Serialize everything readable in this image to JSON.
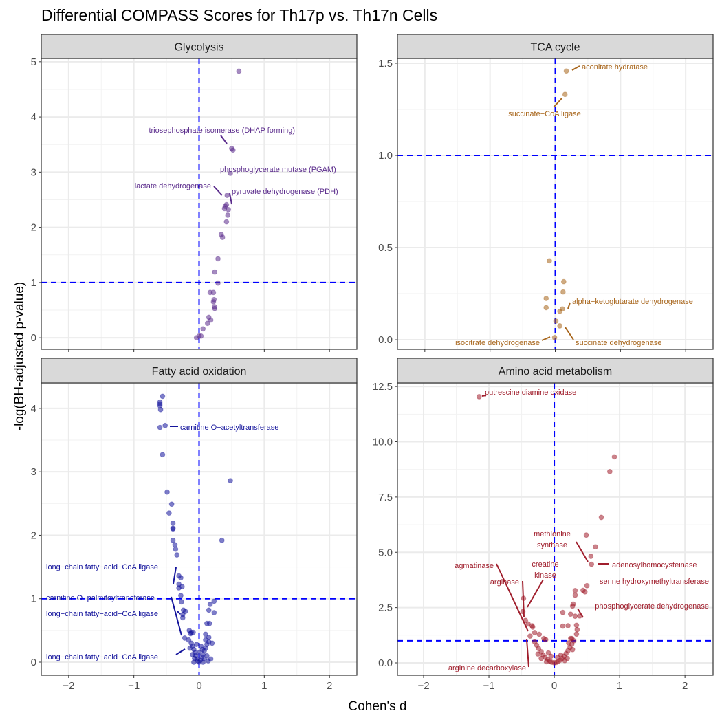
{
  "chart_data": {
    "type": "scatter",
    "title": "Differential COMPASS Scores for Th17p vs. Th17n Cells",
    "xlabel": "Cohen's d",
    "ylabel": "-log(BH-adjusted p-value)",
    "grid": true,
    "threshold_lines": {
      "x": 0,
      "y": 1,
      "color": "#0000ff",
      "style": "dashed"
    },
    "panels": [
      {
        "name": "Glycolysis",
        "color": "#5b2c8c",
        "xlim": [
          -2.42,
          2.42
        ],
        "ylim": [
          -0.21,
          5.06
        ],
        "xticks": [
          -2,
          -1,
          0,
          1,
          2
        ],
        "yticks": [
          0,
          1,
          2,
          3,
          4,
          5
        ],
        "ytick_labels": [
          "0",
          "1",
          "2",
          "3",
          "4",
          "5"
        ],
        "points": [
          [
            0.61,
            4.83
          ],
          [
            0.5,
            3.43
          ],
          [
            0.52,
            3.4
          ],
          [
            0.48,
            2.98
          ],
          [
            0.43,
            2.58
          ],
          [
            0.42,
            2.41
          ],
          [
            0.4,
            2.38
          ],
          [
            0.39,
            2.34
          ],
          [
            0.45,
            2.32
          ],
          [
            0.44,
            2.22
          ],
          [
            0.42,
            2.1
          ],
          [
            0.34,
            1.87
          ],
          [
            0.36,
            1.82
          ],
          [
            0.29,
            1.43
          ],
          [
            0.24,
            1.19
          ],
          [
            0.29,
            0.99
          ],
          [
            0.17,
            0.82
          ],
          [
            0.22,
            0.82
          ],
          [
            0.23,
            0.69
          ],
          [
            0.22,
            0.65
          ],
          [
            0.24,
            0.56
          ],
          [
            0.24,
            0.53
          ],
          [
            0.15,
            0.37
          ],
          [
            0.18,
            0.32
          ],
          [
            0.13,
            0.26
          ],
          [
            0.06,
            0.16
          ],
          [
            0.03,
            0.03
          ],
          [
            -0.04,
            0.0
          ],
          [
            0.0,
            0.03
          ]
        ],
        "labels": [
          {
            "text": "triosephosphate isomerase (DHAP forming)",
            "x": 0.5,
            "y": 3.43
          },
          {
            "text": "phosphoglycerate mutase (PGAM)",
            "x": 0.48,
            "y": 2.98
          },
          {
            "text": "lactate dehydrogenase",
            "x": 0.43,
            "y": 2.58
          },
          {
            "text": "pyruvate dehydrogenase (PDH)",
            "x": 0.42,
            "y": 2.41
          }
        ]
      },
      {
        "name": "TCA cycle",
        "color": "#a8661c",
        "xlim": [
          -2.42,
          2.42
        ],
        "ylim": [
          -0.052,
          1.526
        ],
        "xticks": [
          -2,
          -1,
          0,
          1,
          2
        ],
        "yticks": [
          0,
          0.5,
          1.0,
          1.5
        ],
        "ytick_labels": [
          "0.0",
          "0.5",
          "1.0",
          "1.5"
        ],
        "points": [
          [
            0.17,
            1.458
          ],
          [
            0.15,
            1.331
          ],
          [
            -0.09,
            0.428
          ],
          [
            0.13,
            0.315
          ],
          [
            0.12,
            0.259
          ],
          [
            -0.14,
            0.224
          ],
          [
            -0.14,
            0.174
          ],
          [
            0.11,
            0.167
          ],
          [
            0.07,
            0.154
          ],
          [
            0.01,
            0.101
          ],
          [
            0.07,
            0.075
          ],
          [
            -0.01,
            0.012
          ]
        ],
        "labels": [
          {
            "text": "aconitate hydratase",
            "x": 0.17,
            "y": 1.458
          },
          {
            "text": "succinate−CoA ligase",
            "x": 0.15,
            "y": 1.331
          },
          {
            "text": "alpha−ketoglutarate dehydrogenase",
            "x": 0.11,
            "y": 0.167
          },
          {
            "text": "isocitrate dehydrogenase",
            "x": -0.01,
            "y": 0.012
          },
          {
            "text": "succinate dehydrogenase",
            "x": 0.07,
            "y": 0.075
          }
        ]
      },
      {
        "name": "Fatty acid oxidation",
        "color": "#14149c",
        "xlim": [
          -2.42,
          2.42
        ],
        "ylim": [
          -0.206,
          4.4
        ],
        "xticks": [
          -2,
          -1,
          0,
          1,
          2
        ],
        "yticks": [
          0,
          1,
          2,
          3,
          4
        ],
        "ytick_labels": [
          "0",
          "1",
          "2",
          "3",
          "4"
        ],
        "x_tick_labels": [
          "−2",
          "−1",
          "0",
          "1",
          "2"
        ],
        "points": [
          [
            -0.56,
            4.19
          ],
          [
            -0.6,
            4.1
          ],
          [
            -0.6,
            4.07
          ],
          [
            -0.6,
            4.04
          ],
          [
            -0.59,
            3.98
          ],
          [
            -0.52,
            3.73
          ],
          [
            -0.6,
            3.7
          ],
          [
            -0.56,
            3.27
          ],
          [
            0.48,
            2.86
          ],
          [
            -0.49,
            2.68
          ],
          [
            -0.42,
            2.49
          ],
          [
            -0.46,
            2.35
          ],
          [
            -0.4,
            2.19
          ],
          [
            -0.4,
            2.11
          ],
          [
            -0.4,
            2.1
          ],
          [
            0.35,
            1.92
          ],
          [
            -0.4,
            1.92
          ],
          [
            -0.37,
            1.85
          ],
          [
            -0.36,
            1.78
          ],
          [
            -0.34,
            1.69
          ],
          [
            -0.31,
            1.36
          ],
          [
            -0.28,
            1.33
          ],
          [
            -0.31,
            1.23
          ],
          [
            -0.26,
            1.19
          ],
          [
            -0.31,
            1.17
          ],
          [
            -0.28,
            1.05
          ],
          [
            -0.27,
            0.95
          ],
          [
            0.23,
            0.96
          ],
          [
            0.17,
            0.91
          ],
          [
            0.15,
            0.82
          ],
          [
            0.23,
            0.78
          ],
          [
            -0.24,
            0.82
          ],
          [
            -0.21,
            0.8
          ],
          [
            -0.25,
            0.75
          ],
          [
            -0.25,
            0.7
          ],
          [
            0.12,
            0.61
          ],
          [
            0.16,
            0.61
          ],
          [
            -0.15,
            0.5
          ],
          [
            -0.12,
            0.47
          ],
          [
            -0.09,
            0.47
          ],
          [
            -0.13,
            0.45
          ],
          [
            0.1,
            0.44
          ],
          [
            0.15,
            0.39
          ],
          [
            0.2,
            0.3
          ],
          [
            -0.22,
            0.38
          ],
          [
            -0.12,
            0.3
          ],
          [
            -0.1,
            0.25
          ],
          [
            -0.08,
            0.2
          ],
          [
            -0.06,
            0.15
          ],
          [
            -0.05,
            0.1
          ],
          [
            -0.03,
            0.05
          ],
          [
            -0.02,
            0.02
          ],
          [
            0,
            0.0
          ],
          [
            0.02,
            0.03
          ],
          [
            0.04,
            0.08
          ],
          [
            0.06,
            0.12
          ],
          [
            0.08,
            0.18
          ],
          [
            0.1,
            0.22
          ],
          [
            0.12,
            0.28
          ],
          [
            0.15,
            0.32
          ],
          [
            -0.14,
            0.22
          ],
          [
            -0.1,
            0.12
          ],
          [
            -0.07,
            0.06
          ],
          [
            0.05,
            0.2
          ],
          [
            0.08,
            0.05
          ],
          [
            0.12,
            0.1
          ],
          [
            0.14,
            0.02
          ],
          [
            -0.04,
            0.28
          ],
          [
            0.03,
            0.25
          ],
          [
            0.1,
            0.35
          ],
          [
            -0.16,
            0.35
          ],
          [
            0.0,
            0.15
          ],
          [
            0.06,
            0.0
          ],
          [
            -0.08,
            0.0
          ],
          [
            0.18,
            0.05
          ]
        ],
        "labels": [
          {
            "text": "carnitine O−acetyltransferase",
            "x": -0.52,
            "y": 3.73
          },
          {
            "text": "long−chain fatty−acid−CoA ligase",
            "x": -0.34,
            "y": 1.27
          },
          {
            "text": "carnitine O−palmitoyltransferase",
            "x": -0.22,
            "y": 0.38
          },
          {
            "text": "long−chain fatty−acid−CoA ligase",
            "x": -0.25,
            "y": 0.75
          },
          {
            "text": "long−chain fatty−acid−CoA ligase",
            "x": -0.12,
            "y": 0.2
          }
        ]
      },
      {
        "name": "Amino acid metabolism",
        "color": "#a01e2c",
        "xlim": [
          -2.4,
          2.43
        ],
        "ylim": [
          -0.56,
          12.66
        ],
        "xticks": [
          -2,
          -1,
          0,
          1,
          2
        ],
        "yticks": [
          0,
          2.5,
          5,
          7.5,
          10,
          12.5
        ],
        "ytick_labels": [
          "0.0",
          "2.5",
          "5.0",
          "7.5",
          "10.0",
          "12.5"
        ],
        "points": [
          [
            -1.15,
            12.04
          ],
          [
            0.92,
            9.32
          ],
          [
            0.85,
            8.65
          ],
          [
            0.72,
            6.58
          ],
          [
            0.49,
            5.78
          ],
          [
            0.63,
            5.25
          ],
          [
            0.56,
            4.82
          ],
          [
            0.57,
            4.46
          ],
          [
            0.5,
            3.49
          ],
          [
            0.32,
            3.27
          ],
          [
            0.44,
            3.28
          ],
          [
            0.47,
            3.21
          ],
          [
            0.32,
            3.06
          ],
          [
            -0.47,
            2.92
          ],
          [
            0.29,
            2.66
          ],
          [
            0.28,
            2.57
          ],
          [
            -0.48,
            2.32
          ],
          [
            0.13,
            2.28
          ],
          [
            0.25,
            2.2
          ],
          [
            0.32,
            2.11
          ],
          [
            0.39,
            2.12
          ],
          [
            -0.44,
            1.92
          ],
          [
            -0.4,
            1.76
          ],
          [
            -0.34,
            1.68
          ],
          [
            -0.33,
            1.62
          ],
          [
            0.13,
            1.66
          ],
          [
            0.21,
            1.68
          ],
          [
            0.34,
            1.7
          ],
          [
            0.35,
            1.5
          ],
          [
            0.34,
            1.3
          ],
          [
            -0.3,
            1.37
          ],
          [
            -0.23,
            1.29
          ],
          [
            -0.37,
            1.21
          ],
          [
            -0.16,
            1.1
          ],
          [
            -0.13,
            1.05
          ],
          [
            0.27,
            1.1
          ],
          [
            -0.3,
            0.95
          ],
          [
            -0.27,
            0.8
          ],
          [
            -0.24,
            0.65
          ],
          [
            -0.2,
            0.5
          ],
          [
            -0.17,
            0.35
          ],
          [
            -0.14,
            0.25
          ],
          [
            -0.1,
            0.15
          ],
          [
            -0.07,
            0.08
          ],
          [
            -0.04,
            0.03
          ],
          [
            0,
            0.0
          ],
          [
            0.03,
            0.02
          ],
          [
            0.06,
            0.06
          ],
          [
            0.09,
            0.12
          ],
          [
            0.12,
            0.2
          ],
          [
            0.15,
            0.3
          ],
          [
            0.18,
            0.42
          ],
          [
            0.21,
            0.55
          ],
          [
            0.24,
            0.7
          ],
          [
            0.27,
            0.85
          ],
          [
            0.3,
            1.0
          ],
          [
            -0.2,
            0.2
          ],
          [
            -0.12,
            0.05
          ],
          [
            0.1,
            0.35
          ],
          [
            0.2,
            0.2
          ],
          [
            0.16,
            0.1
          ],
          [
            -0.05,
            0.3
          ],
          [
            -0.25,
            0.4
          ],
          [
            0.22,
            0.9
          ],
          [
            0.25,
            1.1
          ],
          [
            0.28,
            0.6
          ],
          [
            -0.09,
            0.45
          ],
          [
            0.05,
            0.25
          ]
        ],
        "labels": [
          {
            "text": "putrescine diamine oxidase",
            "x": -1.15,
            "y": 12.04
          },
          {
            "text": "methionine",
            "text2": "synthase",
            "x": 0.49,
            "y": 5.78
          },
          {
            "text": "adenosylhomocysteinase",
            "x": 0.57,
            "y": 4.46
          },
          {
            "text": "agmatinase",
            "x": -0.37,
            "y": 1.21
          },
          {
            "text": "creatine",
            "text2": "kinase",
            "x": -0.48,
            "y": 2.32
          },
          {
            "text": "arginase",
            "x": -0.48,
            "y": 2.32
          },
          {
            "text": "serine hydroxymethyltransferase",
            "x": 0.5,
            "y": 3.49
          },
          {
            "text": "phosphoglycerate dehydrogenase",
            "x": 0.39,
            "y": 2.12
          },
          {
            "text": "arginine decarboxylase",
            "x": -0.44,
            "y": 1.92
          }
        ]
      }
    ],
    "x_tick_labels": [
      "−2",
      "−1",
      "0",
      "1",
      "2"
    ]
  }
}
